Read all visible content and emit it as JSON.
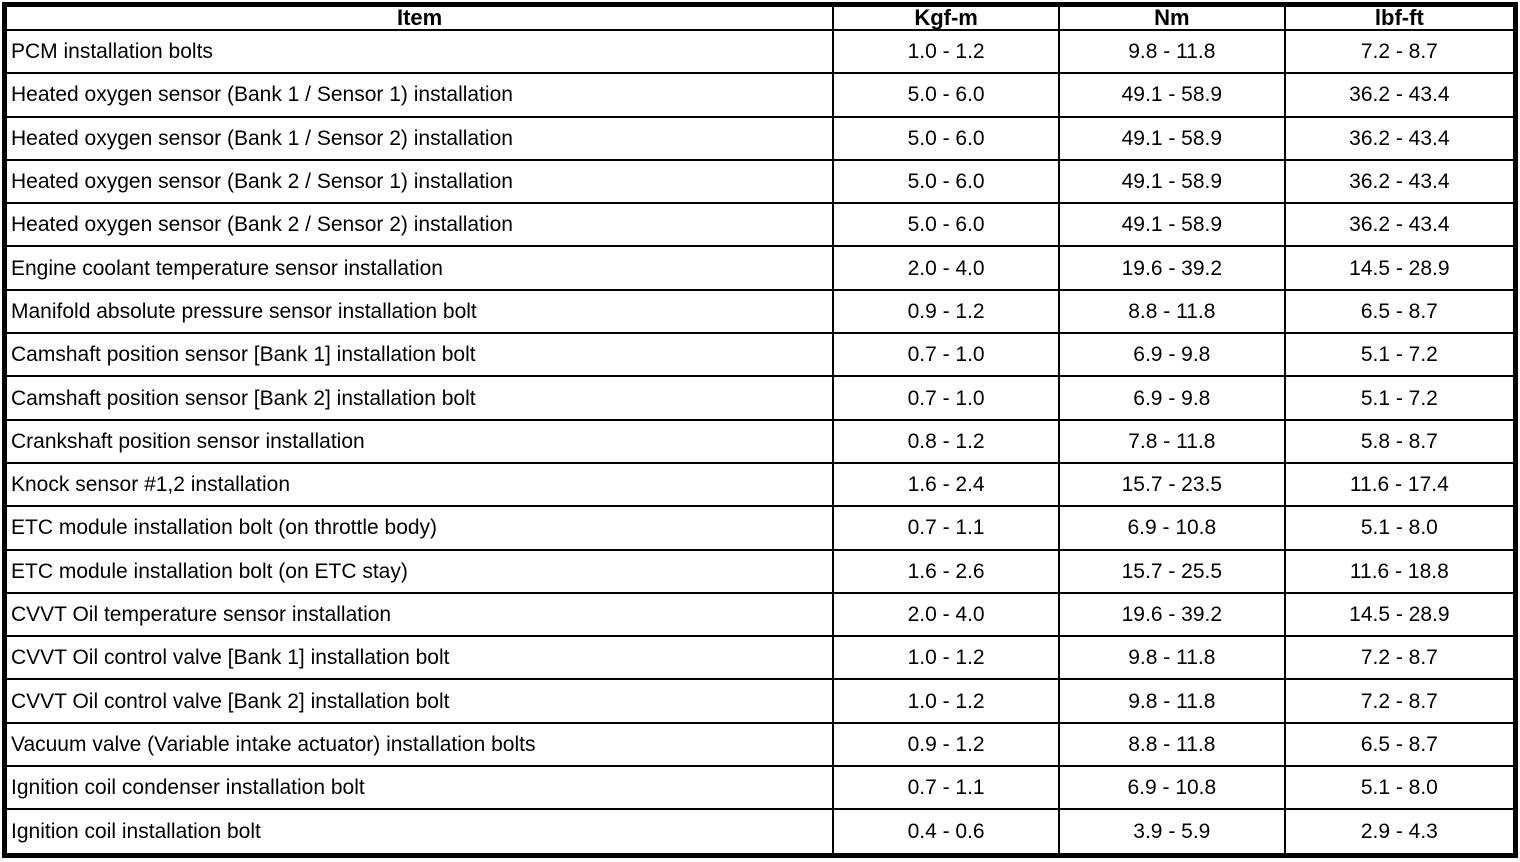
{
  "table": {
    "columns": [
      "Item",
      "Kgf-m",
      "Nm",
      "lbf-ft"
    ],
    "column_keys": [
      "item",
      "kgf-m",
      "nm",
      "lbf-ft"
    ],
    "rows": [
      [
        "PCM installation bolts",
        "1.0 - 1.2",
        "9.8 - 11.8",
        "7.2 - 8.7"
      ],
      [
        "Heated oxygen sensor (Bank 1 / Sensor 1) installation",
        "5.0 - 6.0",
        "49.1 - 58.9",
        "36.2 - 43.4"
      ],
      [
        "Heated oxygen sensor (Bank 1 / Sensor 2) installation",
        "5.0 - 6.0",
        "49.1 - 58.9",
        "36.2 - 43.4"
      ],
      [
        "Heated oxygen sensor (Bank 2 / Sensor 1) installation",
        "5.0 - 6.0",
        "49.1 - 58.9",
        "36.2 - 43.4"
      ],
      [
        "Heated oxygen sensor (Bank 2 / Sensor 2) installation",
        "5.0 - 6.0",
        "49.1 - 58.9",
        "36.2 - 43.4"
      ],
      [
        "Engine coolant temperature sensor installation",
        "2.0 - 4.0",
        "19.6 - 39.2",
        "14.5 - 28.9"
      ],
      [
        "Manifold absolute pressure sensor installation bolt",
        "0.9 - 1.2",
        "8.8 - 11.8",
        "6.5 - 8.7"
      ],
      [
        "Camshaft position sensor [Bank 1] installation bolt",
        "0.7 - 1.0",
        "6.9 - 9.8",
        "5.1 - 7.2"
      ],
      [
        "Camshaft position sensor [Bank 2] installation bolt",
        "0.7 - 1.0",
        "6.9 - 9.8",
        "5.1 - 7.2"
      ],
      [
        "Crankshaft position sensor installation",
        "0.8 - 1.2",
        "7.8 - 11.8",
        "5.8 - 8.7"
      ],
      [
        "Knock sensor #1,2 installation",
        "1.6 - 2.4",
        "15.7 - 23.5",
        "11.6 - 17.4"
      ],
      [
        "ETC module installation bolt (on throttle body)",
        "0.7 - 1.1",
        "6.9 - 10.8",
        "5.1 - 8.0"
      ],
      [
        "ETC module installation bolt (on ETC stay)",
        "1.6 - 2.6",
        "15.7 - 25.5",
        "11.6 - 18.8"
      ],
      [
        "CVVT Oil temperature sensor installation",
        "2.0 - 4.0",
        "19.6 - 39.2",
        "14.5 - 28.9"
      ],
      [
        "CVVT Oil control valve [Bank 1] installation bolt",
        "1.0 - 1.2",
        "9.8 - 11.8",
        "7.2 - 8.7"
      ],
      [
        "CVVT Oil control valve [Bank 2] installation bolt",
        "1.0 - 1.2",
        "9.8 - 11.8",
        "7.2 - 8.7"
      ],
      [
        "Vacuum valve (Variable intake actuator) installation bolts",
        "0.9 - 1.2",
        "8.8 - 11.8",
        "6.5 - 8.7"
      ],
      [
        "Ignition coil condenser installation bolt",
        "0.7 - 1.1",
        "6.9 - 10.8",
        "5.1 - 8.0"
      ],
      [
        "Ignition coil installation bolt",
        "0.4 - 0.6",
        "3.9 - 5.9",
        "2.9 - 4.3"
      ]
    ],
    "colors": {
      "border": "#000000",
      "background": "#ffffff",
      "text": "#000000"
    }
  }
}
